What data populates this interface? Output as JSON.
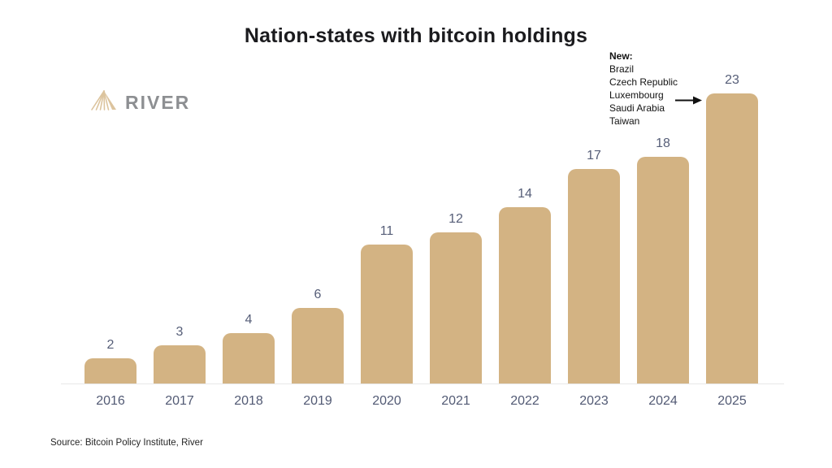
{
  "header": {
    "title": "Nation-states with bitcoin holdings"
  },
  "logo": {
    "brand": "RIVER",
    "mark": "mountain-rays-icon",
    "mark_color": "#dcc49e",
    "text_color": "#8d8f92"
  },
  "annotation": {
    "heading": "New:",
    "items": [
      "Brazil",
      "Czech Republic",
      "Luxembourg",
      "Saudi Arabia",
      "Taiwan"
    ],
    "arrow_target_category": "2025"
  },
  "footer": {
    "source": "Source: Bitcoin Policy Institute, River"
  },
  "colors": {
    "bar": "#d3b383",
    "value_label": "#565e78",
    "axis_label": "#525a74",
    "baseline": "#e7e7e7",
    "title": "#1b1b1e"
  },
  "chart_data": {
    "type": "bar",
    "title": "Nation-states with bitcoin holdings",
    "categories": [
      "2016",
      "2017",
      "2018",
      "2019",
      "2020",
      "2021",
      "2022",
      "2023",
      "2024",
      "2025"
    ],
    "values": [
      2,
      3,
      4,
      6,
      11,
      12,
      14,
      17,
      18,
      23
    ],
    "xlabel": "",
    "ylabel": "",
    "ylim": [
      0,
      25
    ],
    "grid": false,
    "legend": false,
    "y_axis_visible": false,
    "data_labels": true,
    "annotations": [
      {
        "text": "New: Brazil, Czech Republic, Luxembourg, Saudi Arabia, Taiwan",
        "target": "2025",
        "value": 23
      }
    ]
  }
}
